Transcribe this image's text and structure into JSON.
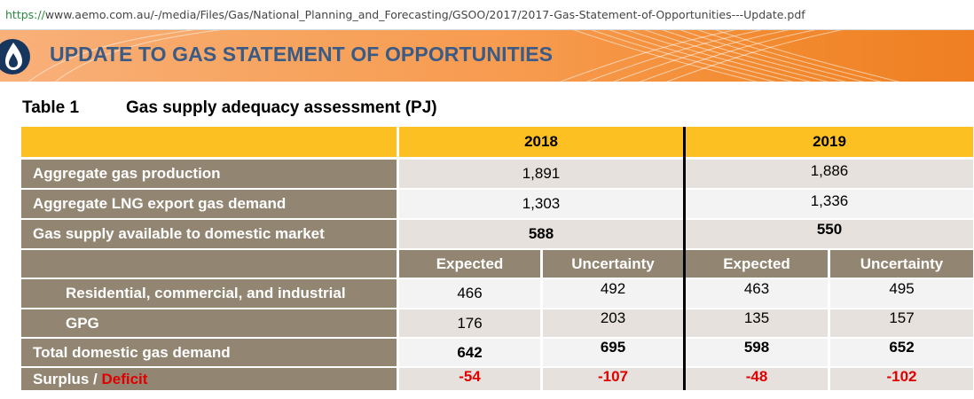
{
  "browser": {
    "url_scheme": "https://",
    "url_rest": "www.aemo.com.au/-/media/Files/Gas/National_Planning_and_Forecasting/GSOO/2017/2017-Gas-Statement-of-Opportunities---Update.pdf"
  },
  "banner": {
    "title": "UPDATE TO GAS STATEMENT OF OPPORTUNITIES",
    "logo_icon": "flame-drop-icon"
  },
  "table": {
    "number": "Table 1",
    "title": "Gas supply adequacy assessment (PJ)",
    "years": [
      "2018",
      "2019"
    ],
    "sub_headers": [
      "Expected",
      "Uncertainty",
      "Expected",
      "Uncertainty"
    ],
    "rows_top": [
      {
        "label": "Aggregate gas production",
        "v2018": "1,891",
        "v2019": "1,886"
      },
      {
        "label": "Aggregate LNG export gas demand",
        "v2018": "1,303",
        "v2019": "1,336"
      },
      {
        "label": "Gas supply available to domestic market",
        "v2018": "588",
        "v2019": "550"
      }
    ],
    "rows_bottom": [
      {
        "label": "Residential, commercial, and industrial",
        "values": [
          "466",
          "492",
          "463",
          "495"
        ]
      },
      {
        "label": "GPG",
        "values": [
          "176",
          "203",
          "135",
          "157"
        ]
      },
      {
        "label": "Total domestic gas demand",
        "values": [
          "642",
          "695",
          "598",
          "652"
        ]
      }
    ],
    "surplus_row": {
      "label_a": "Surplus / ",
      "label_b": "Deficit",
      "values": [
        "-54",
        "-107",
        "-48",
        "-102"
      ]
    }
  },
  "colors": {
    "header_yellow": "#fdc023",
    "label_brown": "#928572",
    "deficit_red": "#e00000",
    "title_blue": "#3a5b86"
  }
}
